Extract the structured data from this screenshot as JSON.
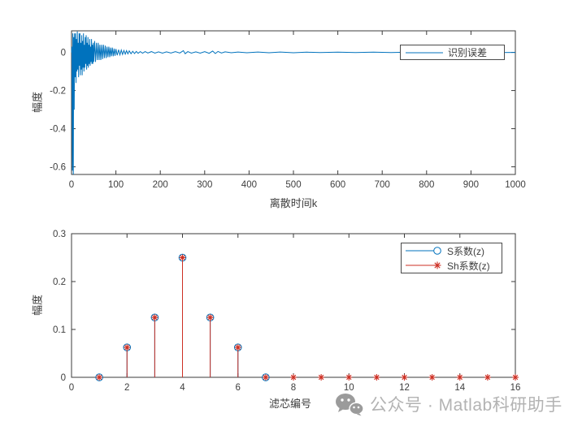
{
  "figure": {
    "background": "#ffffff",
    "axis_color": "#3b3b3b",
    "tick_label_color": "#3d3d3d",
    "blue": "#0072BD",
    "red": "#cd2f23"
  },
  "watermark": {
    "icon": "wechat-logo",
    "icon_color": "#9b9b9b",
    "text": "公众号 · Matlab科研助手",
    "text_color": "#b3b3b3"
  },
  "chart_data": [
    {
      "type": "line",
      "title": "",
      "xlabel": "离散时间k",
      "ylabel": "幅度",
      "xlim": [
        0,
        1000
      ],
      "ylim": [
        -0.64,
        0.113
      ],
      "xticks": [
        0,
        100,
        200,
        300,
        400,
        500,
        600,
        700,
        800,
        900,
        1000
      ],
      "xtick_labels": [
        "0",
        "100",
        "200",
        "300",
        "400",
        "500",
        "600",
        "700",
        "800",
        "900",
        "1000"
      ],
      "yticks": [
        -0.6,
        -0.4,
        -0.2,
        0
      ],
      "ytick_labels": [
        "-0.6",
        "-0.4",
        "-0.2",
        "0"
      ],
      "grid": false,
      "legend": {
        "position": "northeast",
        "entries": [
          {
            "label": "识别误差",
            "color": "#0072BD",
            "marker": "none"
          }
        ]
      },
      "series": [
        {
          "name": "识别误差",
          "color": "#0072BD",
          "points": [
            [
              0,
              0
            ],
            [
              1,
              0.03
            ],
            [
              2,
              -0.62
            ],
            [
              3,
              0.1
            ],
            [
              4,
              -0.64
            ],
            [
              5,
              0.08
            ],
            [
              6,
              -0.3
            ],
            [
              7,
              0.1
            ],
            [
              8,
              -0.13
            ],
            [
              9,
              0.1
            ],
            [
              10,
              -0.16
            ],
            [
              11,
              0.07
            ],
            [
              12,
              -0.1
            ],
            [
              13,
              0.11
            ],
            [
              14,
              -0.09
            ],
            [
              15,
              0.05
            ],
            [
              16,
              -0.13
            ],
            [
              17,
              0.1
            ],
            [
              18,
              -0.07
            ],
            [
              19,
              0.1
            ],
            [
              20,
              -0.12
            ],
            [
              21,
              0.05
            ],
            [
              22,
              -0.09
            ],
            [
              23,
              0.09
            ],
            [
              24,
              -0.12
            ],
            [
              25,
              0.06
            ],
            [
              26,
              -0.08
            ],
            [
              27,
              0.1
            ],
            [
              28,
              -0.1
            ],
            [
              29,
              0.04
            ],
            [
              30,
              -0.08
            ],
            [
              31,
              0.08
            ],
            [
              32,
              -0.06
            ],
            [
              33,
              0.09
            ],
            [
              34,
              -0.09
            ],
            [
              35,
              0.05
            ],
            [
              36,
              -0.07
            ],
            [
              37,
              0.08
            ],
            [
              38,
              -0.08
            ],
            [
              39,
              0.04
            ],
            [
              40,
              -0.06
            ],
            [
              41,
              0.07
            ],
            [
              42,
              -0.07
            ],
            [
              43,
              0.03
            ],
            [
              44,
              -0.05
            ],
            [
              45,
              0.07
            ],
            [
              46,
              -0.06
            ],
            [
              47,
              0.04
            ],
            [
              48,
              -0.06
            ],
            [
              49,
              0.05
            ],
            [
              50,
              -0.05
            ],
            [
              52,
              0.06
            ],
            [
              54,
              -0.05
            ],
            [
              56,
              0.05
            ],
            [
              58,
              -0.04
            ],
            [
              60,
              0.05
            ],
            [
              62,
              -0.04
            ],
            [
              64,
              0.04
            ],
            [
              66,
              -0.04
            ],
            [
              68,
              0.04
            ],
            [
              70,
              -0.035
            ],
            [
              72,
              0.04
            ],
            [
              74,
              -0.03
            ],
            [
              76,
              0.035
            ],
            [
              78,
              -0.03
            ],
            [
              80,
              0.03
            ],
            [
              82,
              -0.025
            ],
            [
              84,
              0.03
            ],
            [
              86,
              -0.025
            ],
            [
              88,
              0.025
            ],
            [
              90,
              -0.02
            ],
            [
              92,
              0.025
            ],
            [
              94,
              -0.02
            ],
            [
              96,
              0.02
            ],
            [
              98,
              -0.018
            ],
            [
              100,
              0.018
            ],
            [
              103,
              -0.015
            ],
            [
              106,
              0.014
            ],
            [
              109,
              -0.013
            ],
            [
              112,
              0.012
            ],
            [
              115,
              -0.011
            ],
            [
              118,
              0.01
            ],
            [
              121,
              -0.009
            ],
            [
              124,
              0.009
            ],
            [
              127,
              -0.008
            ],
            [
              130,
              0.008
            ],
            [
              134,
              -0.007
            ],
            [
              138,
              0.006
            ],
            [
              142,
              -0.006
            ],
            [
              146,
              0.005
            ],
            [
              150,
              -0.005
            ],
            [
              155,
              0.004
            ],
            [
              160,
              -0.004
            ],
            [
              166,
              0.004
            ],
            [
              172,
              -0.003
            ],
            [
              180,
              0.004
            ],
            [
              188,
              -0.004
            ],
            [
              196,
              0.003
            ],
            [
              205,
              -0.004
            ],
            [
              214,
              0.003
            ],
            [
              224,
              -0.003
            ],
            [
              234,
              0.004
            ],
            [
              244,
              -0.003
            ],
            [
              252,
              0.009
            ],
            [
              256,
              -0.007
            ],
            [
              262,
              0.004
            ],
            [
              270,
              -0.004
            ],
            [
              280,
              0.003
            ],
            [
              290,
              -0.004
            ],
            [
              300,
              0.004
            ],
            [
              310,
              -0.005
            ],
            [
              318,
              0.007
            ],
            [
              324,
              -0.006
            ],
            [
              330,
              0.005
            ],
            [
              338,
              -0.003
            ],
            [
              346,
              0.003
            ],
            [
              360,
              -0.002
            ],
            [
              375,
              0.002
            ],
            [
              395,
              -0.002
            ],
            [
              420,
              0.002
            ],
            [
              445,
              -0.002
            ],
            [
              470,
              0.002
            ],
            [
              500,
              -0.002
            ],
            [
              530,
              0.001
            ],
            [
              560,
              -0.001
            ],
            [
              600,
              0.001
            ],
            [
              640,
              -0.001
            ],
            [
              680,
              0.001
            ],
            [
              720,
              -0.001
            ],
            [
              760,
              0.001
            ],
            [
              800,
              -0.001
            ],
            [
              840,
              0.001
            ],
            [
              880,
              -0.001
            ],
            [
              920,
              0.001
            ],
            [
              960,
              -0.001
            ],
            [
              1000,
              0
            ]
          ]
        }
      ]
    },
    {
      "type": "stem",
      "title": "",
      "xlabel": "滤芯编号",
      "ylabel": "幅度",
      "xlim": [
        0,
        16
      ],
      "ylim": [
        0,
        0.3
      ],
      "xticks": [
        0,
        2,
        4,
        6,
        8,
        10,
        12,
        14,
        16
      ],
      "xtick_labels": [
        "0",
        "2",
        "4",
        "6",
        "8",
        "10",
        "12",
        "14",
        "16"
      ],
      "yticks": [
        0,
        0.1,
        0.2,
        0.3
      ],
      "ytick_labels": [
        "0",
        "0.1",
        "0.2",
        "0.3"
      ],
      "grid": false,
      "legend": {
        "position": "northeast",
        "entries": [
          {
            "label": "S系数(z)",
            "color": "#0072BD",
            "marker": "circle"
          },
          {
            "label": "Sh系数(z)",
            "color": "#cd2f23",
            "marker": "asterisk"
          }
        ]
      },
      "series": [
        {
          "name": "S系数(z)",
          "color": "#0072BD",
          "marker": "circle",
          "x": [
            1,
            2,
            3,
            4,
            5,
            6,
            7
          ],
          "y": [
            0,
            0.0625,
            0.125,
            0.25,
            0.125,
            0.0625,
            0
          ]
        },
        {
          "name": "Sh系数(z)",
          "color": "#cd2f23",
          "marker": "asterisk",
          "x": [
            1,
            2,
            3,
            4,
            5,
            6,
            7,
            8,
            9,
            10,
            11,
            12,
            13,
            14,
            15,
            16
          ],
          "y": [
            0,
            0.0625,
            0.125,
            0.25,
            0.125,
            0.0625,
            0,
            0,
            0,
            0,
            0,
            0,
            0,
            0,
            0,
            0
          ]
        }
      ]
    }
  ]
}
